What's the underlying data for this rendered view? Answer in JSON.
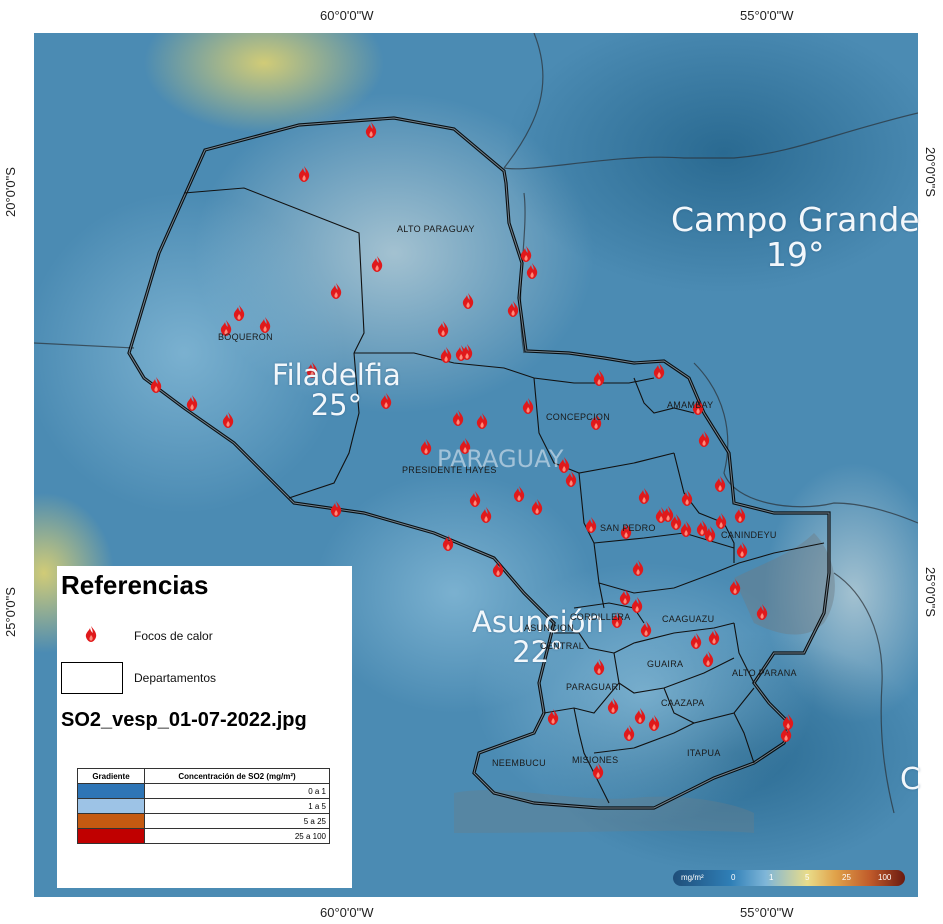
{
  "axes": {
    "top": [
      "60°0'0\"W",
      "55°0'0\"W"
    ],
    "bottom": [
      "60°0'0\"W",
      "55°0'0\"W"
    ],
    "left": [
      "20°0'0\"S",
      "25°0'0\"S"
    ],
    "right": [
      "20°0'0\"S",
      "25°0'0\"S"
    ]
  },
  "basemap_labels": {
    "country": "PARAGUAY",
    "cities": [
      {
        "name": "Campo Grande",
        "temp": "19°"
      },
      {
        "name": "Filadelfia",
        "temp": "25°"
      },
      {
        "name": "Asunción",
        "temp": "22°"
      }
    ],
    "edge_fragment": "C"
  },
  "departments": [
    "ALTO PARAGUAY",
    "BOQUERON",
    "PRESIDENTE HAYES",
    "CONCEPCION",
    "AMAMBAY",
    "SAN PEDRO",
    "CANINDEYU",
    "CORDILLERA",
    "ASUNCION",
    "CENTRAL",
    "CAAGUAZU",
    "GUAIRA",
    "ALTO PARANA",
    "PARAGUARI",
    "CAAZAPA",
    "NEEMBUCU",
    "MISIONES",
    "ITAPUA"
  ],
  "legend": {
    "title": "Referencias",
    "hotspots_label": "Focos de calor",
    "departments_label": "Departamentos",
    "file_name": "SO2_vesp_01-07-2022.jpg",
    "table_header_gradient": "Gradiente",
    "table_header_concentration": "Concentración de SO2 (mg/m²)",
    "rows": [
      {
        "range": "0 a 1",
        "color": "#2e75b6"
      },
      {
        "range": "1 a 5",
        "color": "#9dc3e6"
      },
      {
        "range": "5 a 25",
        "color": "#c55a11"
      },
      {
        "range": "25 a 100",
        "color": "#c00000"
      }
    ]
  },
  "colorbar": {
    "unit": "mg/m²",
    "ticks": [
      "0",
      "1",
      "5",
      "25",
      "100"
    ]
  },
  "colors": {
    "fire": "#e0191b",
    "boundary": "#1a1a1a",
    "legend_background": "#ffffff"
  }
}
